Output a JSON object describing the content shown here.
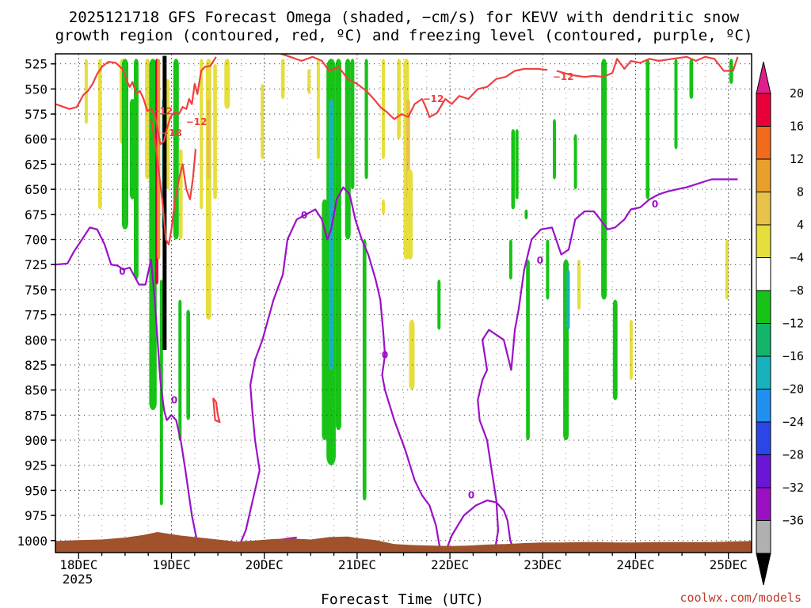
{
  "chart_data": {
    "type": "heatmap",
    "title_line1": "2025121718 GFS Forecast Omega (shaded, −cm/s) for KEVV with dendritic snow",
    "title_line2": "growth region (contoured, red, ºC) and freezing level (contoured, purple, ºC)",
    "xlabel": "Forecast Time (UTC)",
    "credit": "coolwx.com/models",
    "x_ticks": [
      "18DEC",
      "19DEC",
      "20DEC",
      "21DEC",
      "22DEC",
      "23DEC",
      "24DEC",
      "25DEC"
    ],
    "x_sub": "2025",
    "x_range_days": [
      17.75,
      25.25
    ],
    "y_ticks": [
      525,
      550,
      575,
      600,
      625,
      650,
      675,
      700,
      725,
      750,
      775,
      800,
      825,
      850,
      875,
      900,
      925,
      950,
      975,
      1000
    ],
    "y_range_hpa": [
      515,
      1012
    ],
    "grid": "dotted",
    "colorbar": {
      "placement": "right",
      "labels": [
        "20",
        "16",
        "12",
        "8",
        "4",
        "−4",
        "−8",
        "−12",
        "−16",
        "−20",
        "−24",
        "−28",
        "−32",
        "−36"
      ],
      "colors": [
        "#e8003a",
        "#f26a1b",
        "#e99f2c",
        "#e8c34a",
        "#e6de3c",
        "#ffffff",
        "#16c316",
        "#12b56a",
        "#17b3bc",
        "#1f8ff0",
        "#2a46e6",
        "#6a16d6",
        "#9a10c2",
        "#b0b0b0"
      ],
      "top_color": "#e0208a",
      "bottom_color": "#000000"
    },
    "contour_labels": {
      "dgz": [
        "−12",
        "−18"
      ],
      "freezing": [
        "0"
      ]
    },
    "colors": {
      "terrain": "#a0522d",
      "dgz_contour": "#f04040",
      "freezing_contour": "#9b10c8"
    }
  }
}
